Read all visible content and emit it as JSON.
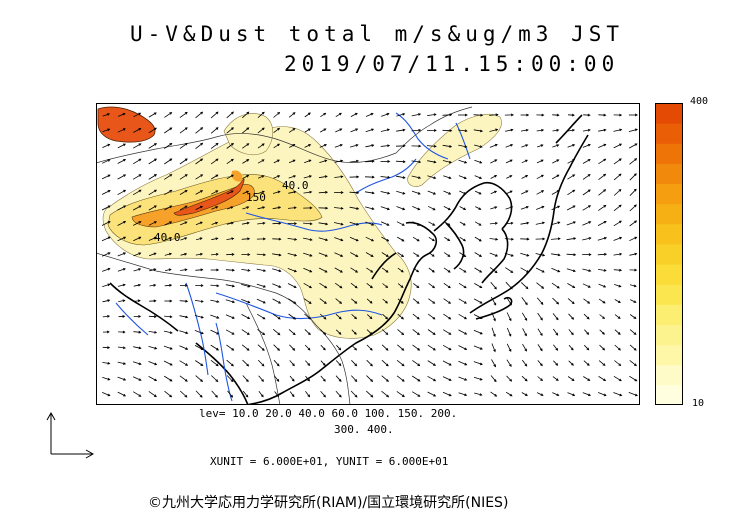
{
  "title": {
    "line1": "U-V&Dust total m/s&ug/m3 JST",
    "line2": "2019/07/11.15:00:00"
  },
  "colorbar": {
    "max_label": "400",
    "min_label": "10",
    "colors": [
      "#ffffe0",
      "#fefbc8",
      "#fef7a8",
      "#fdf38e",
      "#fcee70",
      "#fbe650",
      "#fbdc38",
      "#f9d028",
      "#f8c11c",
      "#f7b014",
      "#f49e10",
      "#f18a0c",
      "#ee7408",
      "#ea5e06",
      "#e54a04"
    ]
  },
  "levels": {
    "line1": "lev= 10.0 20.0 40.0 60.0 100. 150. 200.",
    "line2": "300. 400."
  },
  "units": "XUNIT = 6.000E+01, YUNIT = 6.000E+01",
  "credit": "©九州大学応用力学研究所(RIAM)/国立環境研究所(NIES)",
  "map": {
    "contour_labels": [
      "40.0",
      "150",
      "40.0"
    ],
    "colors": {
      "dust_light": "#fdf5c0",
      "dust_mid": "#fbe27a",
      "dust_high": "#f6a22a",
      "dust_peak": "#e8561a",
      "coast": "#000000",
      "river": "#1e56e0",
      "border": "#333333"
    }
  }
}
